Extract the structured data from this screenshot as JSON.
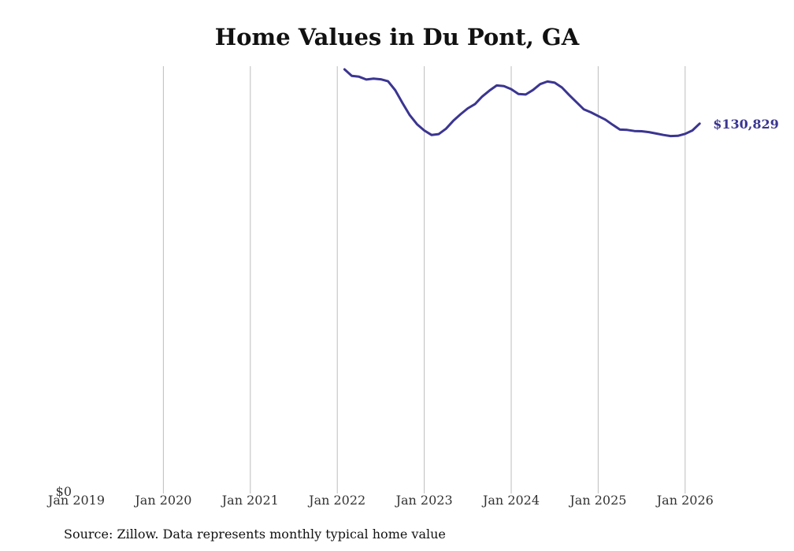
{
  "chart_data": {
    "type": "line",
    "title": "Home Values in Du Pont, GA",
    "xlabel": "",
    "ylabel": "",
    "grid": "vertical",
    "source": "Source: Zillow. Data represents monthly typical home value",
    "line_color": "#3b3591",
    "x_ticks": [
      "Jan 2019",
      "Jan 2020",
      "Jan 2021",
      "Jan 2022",
      "Jan 2023",
      "Jan 2024",
      "Jan 2025",
      "Jan 2026"
    ],
    "y_ticks": [
      "$0"
    ],
    "ylim": [
      0,
      150000
    ],
    "end_label": "$130,829",
    "series": [
      {
        "name": "Typical home value",
        "x": [
          2022.083,
          2022.167,
          2022.25,
          2022.333,
          2022.417,
          2022.5,
          2022.583,
          2022.667,
          2022.75,
          2022.833,
          2022.917,
          2023.0,
          2023.083,
          2023.167,
          2023.25,
          2023.333,
          2023.417,
          2023.5,
          2023.583,
          2023.667,
          2023.75,
          2023.833,
          2023.917,
          2024.0,
          2024.083,
          2024.167,
          2024.25,
          2024.333,
          2024.417,
          2024.5,
          2024.583,
          2024.667,
          2024.75,
          2024.833,
          2024.917,
          2025.0,
          2025.083,
          2025.167,
          2025.25,
          2025.333,
          2025.417,
          2025.5,
          2025.583,
          2025.667,
          2025.75,
          2025.833,
          2025.917,
          2026.0,
          2026.083,
          2026.167
        ],
        "values": [
          150000,
          147700,
          147400,
          146400,
          146700,
          146500,
          145800,
          142600,
          138100,
          133800,
          130600,
          128400,
          126800,
          127100,
          129000,
          131800,
          134100,
          136200,
          137700,
          140400,
          142500,
          144300,
          144100,
          143000,
          141300,
          141100,
          142700,
          144800,
          145700,
          145300,
          143600,
          140900,
          138400,
          135900,
          134800,
          133500,
          132200,
          130400,
          128700,
          128600,
          128200,
          128100,
          127800,
          127300,
          126800,
          126400,
          126500,
          127200,
          128400,
          130829
        ]
      }
    ]
  }
}
